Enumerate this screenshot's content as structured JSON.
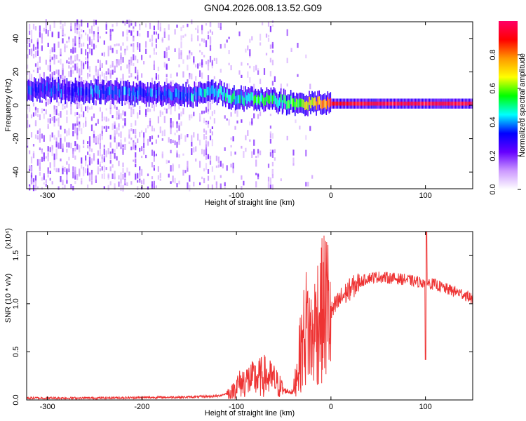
{
  "title": "GN04.2026.008.13.52.G09",
  "chart_data": [
    {
      "type": "heatmap",
      "title": "GN04.2026.008.13.52.G09",
      "xlabel": "Height of straight line (km)",
      "ylabel": "Frequency (Hz)",
      "xlim": [
        -322,
        150
      ],
      "ylim": [
        -50,
        50
      ],
      "x_ticks": [
        -300,
        -200,
        -100,
        0,
        100
      ],
      "y_ticks": [
        -40,
        -20,
        0,
        20,
        40
      ],
      "colorbar": {
        "label": "Normalized spectral amplitude",
        "range": [
          0.0,
          1.0
        ],
        "ticks": [
          0.0,
          0.2,
          0.4,
          0.6,
          0.8
        ],
        "colormap": [
          "#ffffff",
          "#cc99ff",
          "#6600ff",
          "#0000ff",
          "#00ffff",
          "#00ff00",
          "#ffff00",
          "#ff9900",
          "#ff0000",
          "#ff0066"
        ]
      },
      "ridge": {
        "x": [
          -322,
          -250,
          -200,
          -150,
          -120,
          -100,
          -80,
          -60,
          -40,
          -20,
          0,
          50,
          100,
          150
        ],
        "freq": [
          10,
          8,
          7,
          6,
          8,
          4,
          4,
          3,
          1,
          1,
          1,
          1,
          1,
          1
        ],
        "amplitude": [
          0.3,
          0.35,
          0.35,
          0.4,
          0.45,
          0.45,
          0.5,
          0.5,
          0.55,
          0.7,
          0.9,
          0.95,
          0.95,
          0.95
        ]
      }
    },
    {
      "type": "line",
      "xlabel": "Height of straight line (km)",
      "ylabel": "SNR (10 * v/v)",
      "y_multiplier": "(x10⁴)",
      "xlim": [
        -322,
        150
      ],
      "ylim": [
        0,
        1.75
      ],
      "x_ticks": [
        -300,
        -200,
        -100,
        0,
        100
      ],
      "y_ticks": [
        "0.0",
        "0.5",
        "1.0",
        "1.5"
      ],
      "series": [
        {
          "color": "#ee3333",
          "x": [
            -322,
            -300,
            -250,
            -200,
            -150,
            -120,
            -105,
            -100,
            -90,
            -80,
            -70,
            -60,
            -50,
            -40,
            -35,
            -30,
            -25,
            -20,
            -15,
            -10,
            -5,
            0,
            10,
            20,
            30,
            40,
            50,
            60,
            70,
            80,
            90,
            100,
            110,
            120,
            130,
            140,
            150
          ],
          "y": [
            0.02,
            0.02,
            0.02,
            0.025,
            0.03,
            0.04,
            0.08,
            0.15,
            0.2,
            0.22,
            0.25,
            0.2,
            0.1,
            0.08,
            0.35,
            0.6,
            0.8,
            0.6,
            0.85,
            0.9,
            1.0,
            0.9,
            1.05,
            1.15,
            1.22,
            1.27,
            1.28,
            1.27,
            1.26,
            1.25,
            1.23,
            1.22,
            1.2,
            1.16,
            1.13,
            1.1,
            1.05
          ]
        }
      ]
    }
  ]
}
